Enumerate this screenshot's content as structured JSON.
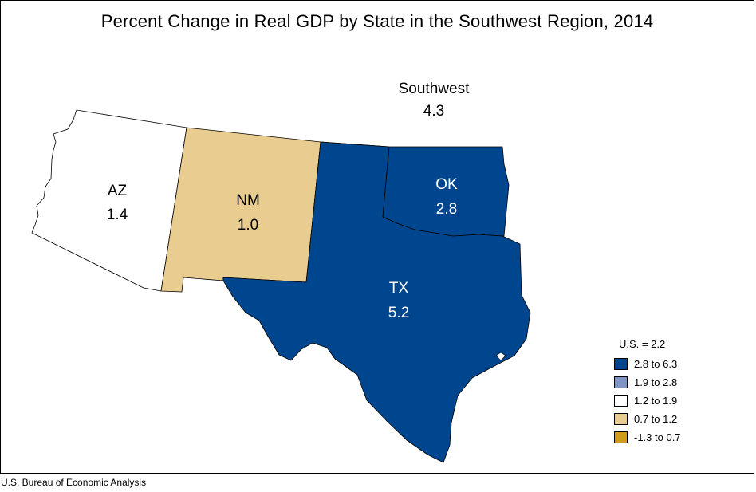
{
  "title": "Percent Change in Real GDP by State in the Southwest Region, 2014",
  "region": {
    "name": "Southwest",
    "value": "4.3"
  },
  "states": [
    {
      "abbr": "AZ",
      "value": "1.4",
      "color": "#ffffff"
    },
    {
      "abbr": "NM",
      "value": "1.0",
      "color": "#e9cd90"
    },
    {
      "abbr": "OK",
      "value": "2.8",
      "color": "#00468e"
    },
    {
      "abbr": "TX",
      "value": "5.2",
      "color": "#00468e"
    }
  ],
  "legend": {
    "title": "U.S. = 2.2",
    "items": [
      {
        "label": "2.8 to 6.3",
        "color": "#00468e"
      },
      {
        "label": "1.9 to 2.8",
        "color": "#7f93c4"
      },
      {
        "label": "1.2 to 1.9",
        "color": "#ffffff"
      },
      {
        "label": "0.7 to 1.2",
        "color": "#e9cd90"
      },
      {
        "label": "-1.3 to 0.7",
        "color": "#d19c17"
      }
    ]
  },
  "source": "U.S. Bureau of Economic Analysis"
}
